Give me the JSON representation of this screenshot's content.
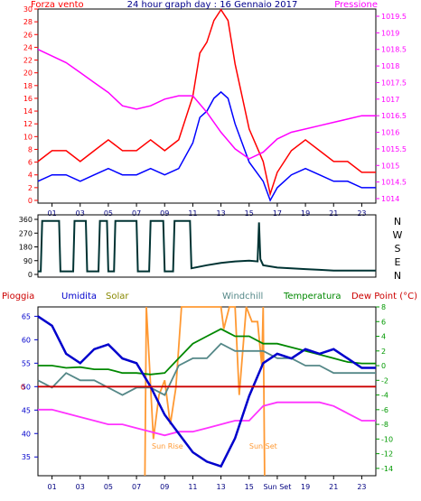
{
  "colors": {
    "background": "#ffffff",
    "axis": "#000000",
    "wind_gust": "#ff0000",
    "wind_avg": "#0000ff",
    "pressure": "#ff00ff",
    "direction": "#003333",
    "rain": "#cc0000",
    "humidity": "#0000cc",
    "solar": "#ff9933",
    "windchill": "#558888",
    "temperature": "#008800",
    "dewpoint": "#ff33ff",
    "right_axis2": "#009900"
  },
  "chart_data": [
    {
      "type": "line",
      "title": "24 hour graph day : 16 Gennaio 2017",
      "left_label": "Forza vento",
      "right_label": "Pressione",
      "x_ticks": [
        "01",
        "03",
        "05",
        "07",
        "09",
        "11",
        "13",
        "15",
        "17",
        "19",
        "21",
        "23"
      ],
      "y_left": {
        "range": [
          0,
          30
        ],
        "ticks": [
          "0",
          "2",
          "4",
          "6",
          "8",
          "10",
          "12",
          "14",
          "16",
          "18",
          "20",
          "22",
          "24",
          "26",
          "28",
          "30"
        ]
      },
      "y_right": {
        "range": [
          1014,
          1019.5
        ],
        "ticks": [
          "1014",
          "1014.5",
          "1015",
          "1015.5",
          "1016",
          "1016.5",
          "1017",
          "1017.5",
          "1018",
          "1018.5",
          "1019",
          "1019.5"
        ]
      },
      "series": [
        {
          "name": "Forza vento",
          "axis": "left",
          "x": [
            0,
            1,
            2,
            3,
            4,
            5,
            6,
            7,
            8,
            9,
            10,
            11,
            11.5,
            12,
            12.5,
            13,
            13.5,
            14,
            14.5,
            15,
            16,
            16.5,
            17,
            18,
            19,
            20,
            21,
            22,
            23,
            24
          ],
          "values": [
            3,
            4,
            4,
            3,
            4,
            5,
            4,
            4,
            5,
            4,
            5,
            9,
            13,
            14,
            16,
            17,
            16,
            12,
            9,
            6,
            3,
            0,
            2,
            4,
            5,
            4,
            3,
            3,
            2,
            2
          ]
        },
        {
          "name": "Pressione",
          "axis": "right",
          "x": [
            0,
            1,
            2,
            3,
            4,
            5,
            6,
            7,
            8,
            9,
            10,
            11,
            12,
            13,
            14,
            15,
            16,
            17,
            18,
            19,
            20,
            21,
            22,
            23,
            24
          ],
          "values": [
            1018.5,
            1018.3,
            1018.1,
            1017.8,
            1017.5,
            1017.2,
            1016.8,
            1016.7,
            1016.8,
            1017.0,
            1017.1,
            1017.1,
            1016.6,
            1016.0,
            1015.5,
            1015.2,
            1015.4,
            1015.8,
            1016.0,
            1016.1,
            1016.2,
            1016.3,
            1016.4,
            1016.5,
            1016.5
          ]
        }
      ]
    },
    {
      "type": "line",
      "y_labels": [
        "N",
        "W",
        "S",
        "E",
        "N"
      ],
      "y": {
        "range": [
          0,
          360
        ],
        "ticks": [
          "0",
          "90",
          "180",
          "270",
          "360"
        ]
      },
      "series": [
        {
          "name": "direction",
          "x": [
            0,
            0.2,
            0.3,
            1.5,
            1.6,
            2.5,
            2.6,
            3.4,
            3.5,
            4.3,
            4.4,
            4.9,
            5.0,
            5.4,
            5.5,
            7.0,
            7.1,
            7.9,
            8.0,
            8.9,
            9.0,
            9.6,
            9.7,
            10.8,
            10.9,
            12,
            13,
            14,
            15,
            15.6,
            15.7,
            15.8,
            16,
            17,
            18,
            19,
            20,
            21,
            22,
            23,
            24
          ],
          "values": [
            20,
            20,
            350,
            350,
            20,
            20,
            350,
            350,
            20,
            20,
            350,
            350,
            20,
            20,
            350,
            350,
            20,
            20,
            350,
            350,
            20,
            20,
            350,
            350,
            40,
            60,
            75,
            85,
            90,
            85,
            340,
            100,
            60,
            45,
            40,
            35,
            30,
            25,
            25,
            25,
            25
          ]
        }
      ]
    },
    {
      "type": "line",
      "labels": {
        "rain": "Pioggia",
        "humidity": "Umidita",
        "solar": "Solar",
        "windchill": "Windchill",
        "temperature": "Temperatura",
        "dewpoint": "Dew Point (°C)"
      },
      "x_ticks": [
        "01",
        "03",
        "05",
        "07",
        "09",
        "11",
        "13",
        "15",
        "Sun Set",
        "19",
        "21",
        "23"
      ],
      "annotations": [
        "Sun Rise",
        "Sun Set"
      ],
      "y_left": {
        "range": [
          31,
          67
        ],
        "ticks": [
          "35",
          "40",
          "45",
          "50",
          "55",
          "60",
          "65"
        ]
      },
      "y_right": {
        "range": [
          -15,
          8
        ],
        "ticks": [
          "8",
          "6",
          "4",
          "2",
          "0",
          "-2",
          "-4",
          "-6",
          "-8",
          "-10",
          "-12",
          "-14"
        ]
      },
      "series": [
        {
          "name": "Umidita",
          "axis": "left",
          "x": [
            0,
            1,
            2,
            3,
            4,
            5,
            6,
            7,
            8,
            9,
            10,
            11,
            12,
            13,
            14,
            15,
            16,
            17,
            18,
            19,
            20,
            21,
            22,
            23,
            24
          ],
          "values": [
            65,
            63,
            57,
            55,
            58,
            59,
            56,
            55,
            50,
            44,
            40,
            36,
            34,
            33,
            39,
            48,
            55,
            57,
            56,
            58,
            57,
            58,
            56,
            54,
            54
          ]
        },
        {
          "name": "Temperatura",
          "axis": "right",
          "x": [
            0,
            1,
            2,
            3,
            4,
            5,
            6,
            7,
            8,
            9,
            10,
            11,
            12,
            13,
            14,
            15,
            16,
            17,
            18,
            19,
            20,
            21,
            22,
            23,
            24
          ],
          "values": [
            0,
            0,
            -0.3,
            -0.2,
            -0.5,
            -0.5,
            -1,
            -1,
            -1.2,
            -1,
            1,
            3,
            4,
            5,
            4,
            4,
            3,
            3,
            2.5,
            2,
            1.5,
            1,
            0.5,
            0.3,
            0.3
          ]
        },
        {
          "name": "Windchill",
          "axis": "right",
          "x": [
            0,
            1,
            2,
            3,
            4,
            5,
            6,
            7,
            8,
            9,
            10,
            11,
            12,
            13,
            14,
            15,
            16,
            17,
            18,
            19,
            20,
            21,
            22,
            23,
            24
          ],
          "values": [
            -2,
            -3,
            -1,
            -2,
            -2,
            -3,
            -4,
            -3,
            -3,
            -4,
            0,
            1,
            1,
            3,
            2,
            2,
            2,
            1,
            1,
            0,
            0,
            -1,
            -1,
            -1,
            -1
          ]
        },
        {
          "name": "Dew Point (°C)",
          "axis": "right",
          "x": [
            0,
            1,
            2,
            3,
            4,
            5,
            6,
            7,
            8,
            9,
            10,
            11,
            12,
            13,
            14,
            15,
            16,
            17,
            18,
            19,
            20,
            21,
            22,
            23,
            24
          ],
          "values": [
            -6,
            -6,
            -6.5,
            -7,
            -7.5,
            -8,
            -8,
            -8.5,
            -9,
            -9.5,
            -9,
            -9,
            -8.5,
            -8,
            -7.5,
            -7.5,
            -5.5,
            -5,
            -5,
            -5,
            -5,
            -5.5,
            -6.5,
            -7.5,
            -7.5
          ]
        },
        {
          "name": "Solar",
          "axis": "right",
          "x": [
            7.6,
            7.7,
            8.2,
            8.6,
            9,
            9.4,
            9.8,
            10.2,
            10.6,
            11,
            11.5,
            12,
            12.5,
            13,
            13.2,
            13.6,
            14,
            14.3,
            14.8,
            15.2,
            15.6,
            15.9,
            16,
            16.1
          ],
          "values": [
            -15,
            8,
            -10,
            -4,
            -2,
            -8,
            -3,
            8,
            8,
            8,
            8,
            8,
            8,
            8,
            5,
            8,
            8,
            -4,
            8,
            6,
            6,
            0,
            8,
            -15
          ]
        },
        {
          "name": "Pioggia",
          "axis": "left",
          "x": [
            0,
            24
          ],
          "values": [
            50,
            50
          ]
        }
      ]
    }
  ]
}
